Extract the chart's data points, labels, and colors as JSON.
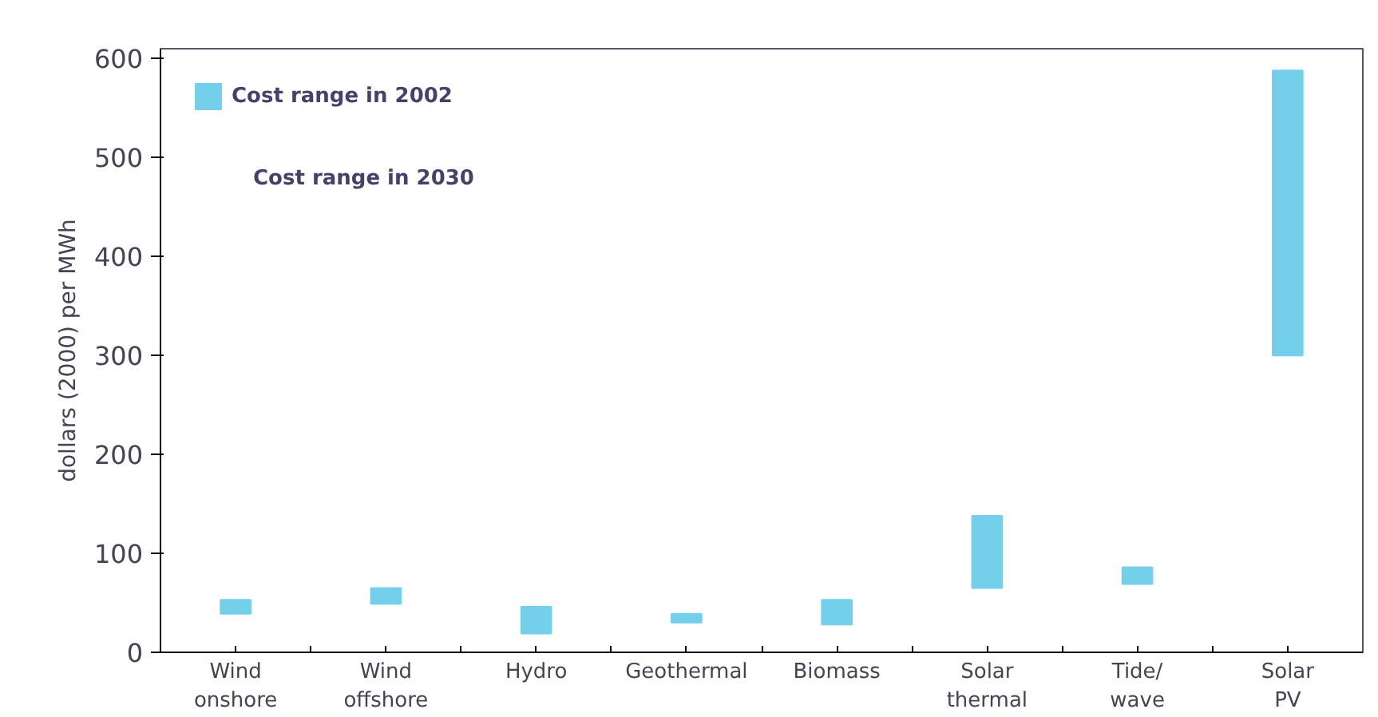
{
  "chart_data": {
    "type": "bar",
    "ylabel": "dollars (2000) per MWh",
    "categories": [
      "Wind\nonshore",
      "Wind\noffshore",
      "Hydro",
      "Geothermal",
      "Biomass",
      "Solar\nthermal",
      "Tide/\nwave",
      "Solar\nPV"
    ],
    "series": [
      {
        "name": "Cost range in 2002",
        "color": "#74d0ea",
        "values": [
          14,
          16,
          27,
          9,
          25,
          73,
          17,
          288
        ],
        "base": [
          39,
          49,
          19,
          30,
          28,
          65,
          69,
          300
        ]
      }
    ],
    "ylim": [
      0,
      610
    ],
    "yticks": [
      0,
      100,
      200,
      300,
      400,
      500,
      600
    ],
    "legend": "top left",
    "grid": false,
    "annotations": [
      "Cost range in 2030"
    ]
  }
}
